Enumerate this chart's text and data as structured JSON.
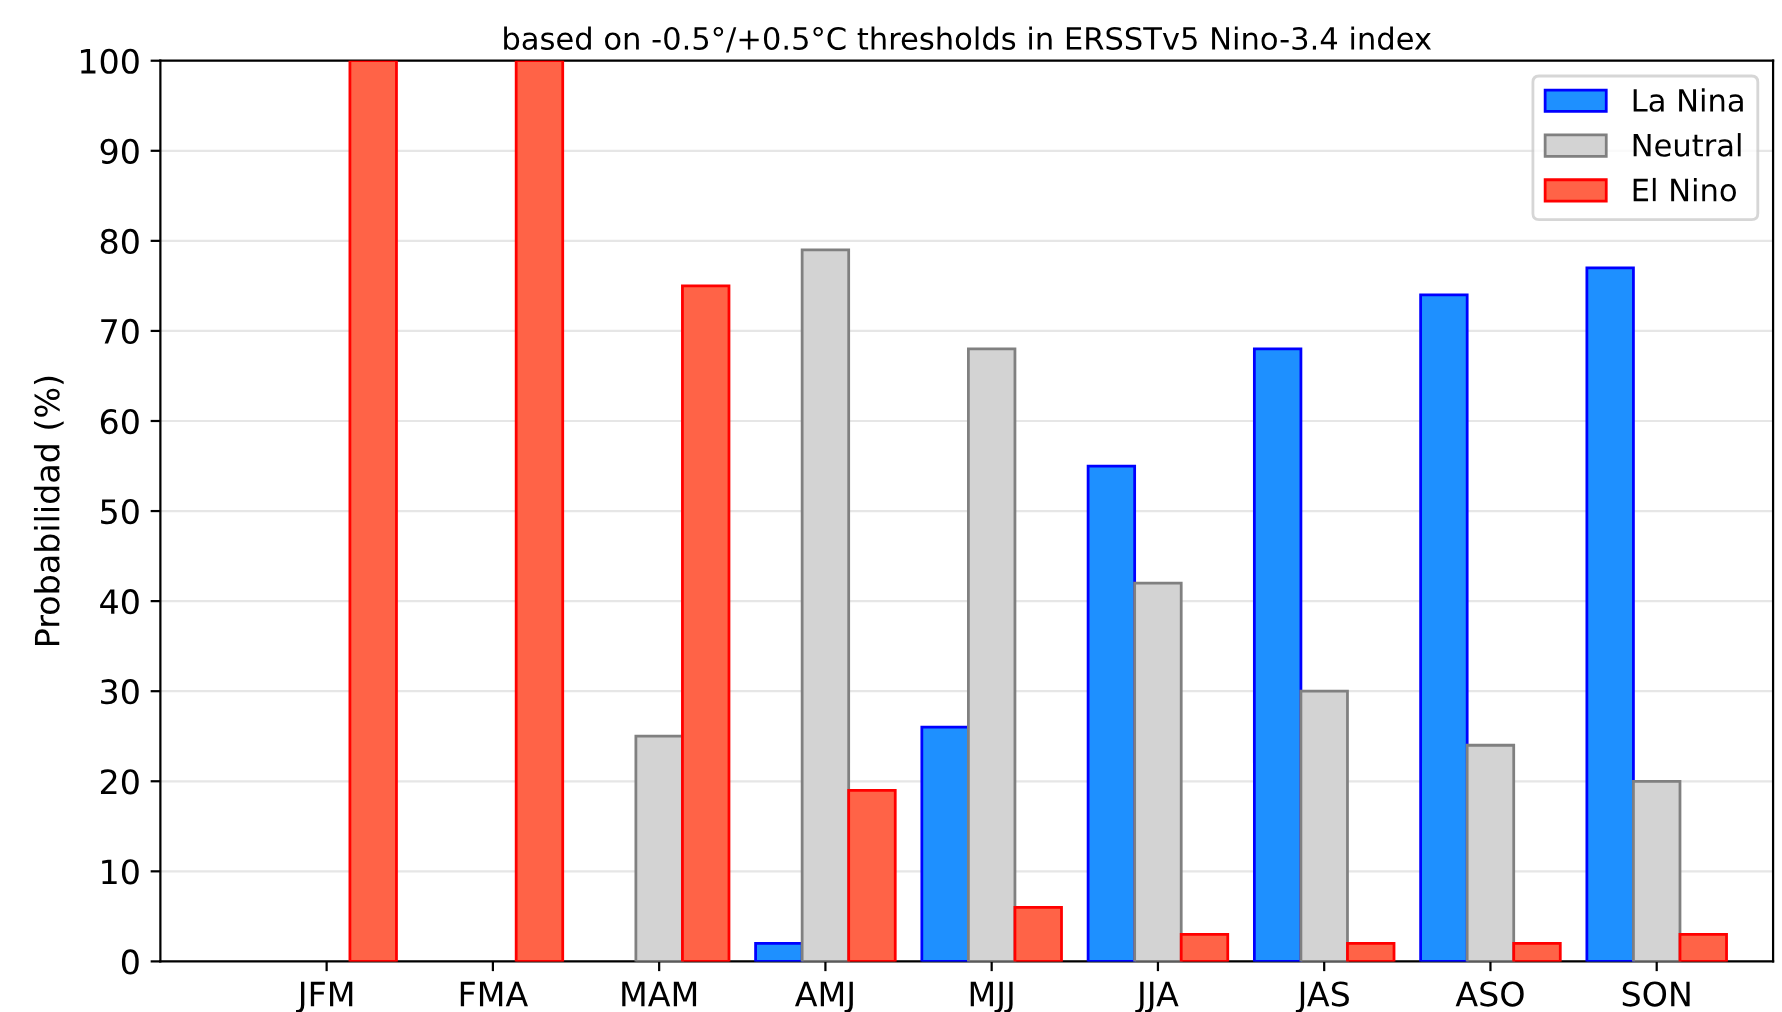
{
  "chart_data": {
    "type": "bar",
    "title": "based on -0.5°/+0.5°C thresholds in ERSSTv5 Nino-3.4 index",
    "ylabel": "Probabilidad (%)",
    "categories": [
      "JFM",
      "FMA",
      "MAM",
      "AMJ",
      "MJJ",
      "JJA",
      "JAS",
      "ASO",
      "SON"
    ],
    "series": [
      {
        "name": "La Nina",
        "color": "#1e90ff",
        "values": [
          null,
          null,
          null,
          2,
          26,
          55,
          68,
          74,
          77
        ]
      },
      {
        "name": "Neutral",
        "color": "#d3d3d3",
        "values": [
          null,
          null,
          25,
          79,
          68,
          42,
          30,
          24,
          20
        ]
      },
      {
        "name": "El Nino",
        "color": "#ff6347",
        "values": [
          100,
          100,
          75,
          19,
          6,
          3,
          2,
          2,
          3
        ]
      }
    ],
    "ylim": [
      0,
      100
    ],
    "yticks": [
      0,
      10,
      20,
      30,
      40,
      50,
      60,
      70,
      80,
      90,
      100
    ],
    "grid": "y",
    "legend": "top right"
  }
}
